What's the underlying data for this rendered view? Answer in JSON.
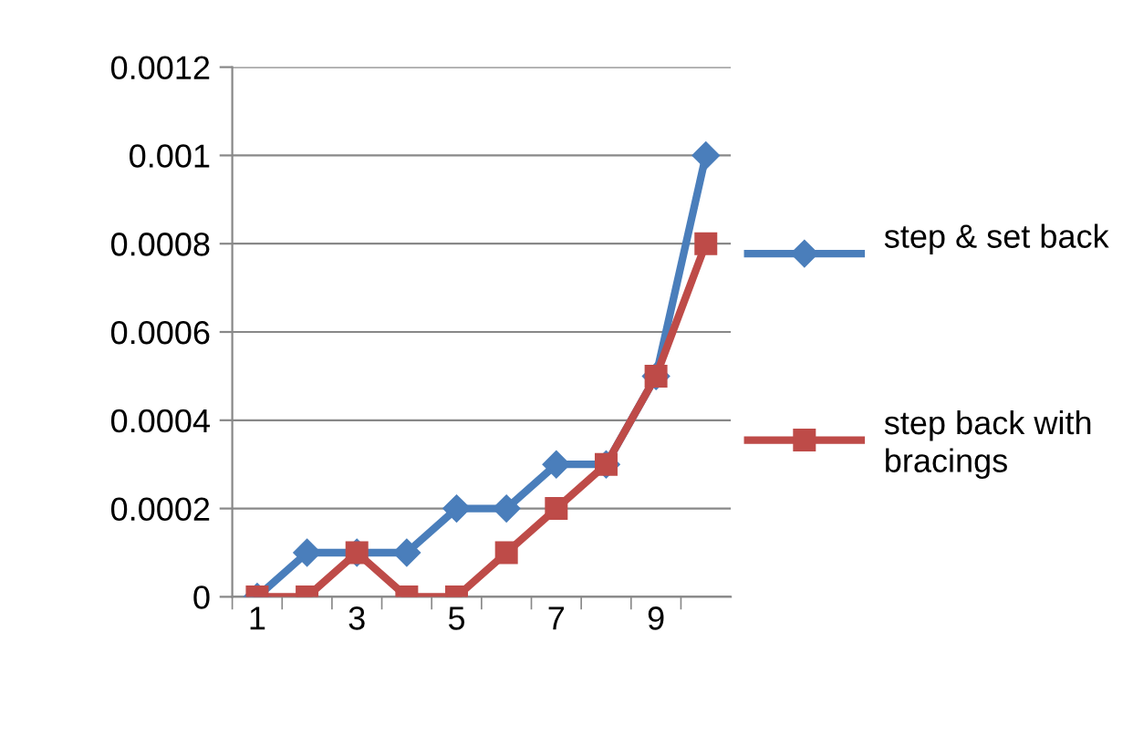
{
  "chart_data": {
    "type": "line",
    "categories": [
      "1",
      null,
      "3",
      null,
      "5",
      null,
      "7",
      null,
      "9",
      null
    ],
    "series": [
      {
        "name": "step & set back",
        "color": "#4a7ebb",
        "marker": "diamond",
        "values": [
          0,
          0.0001,
          0.0001,
          0.0001,
          0.0002,
          0.0002,
          0.0003,
          0.0003,
          0.0005,
          0.001
        ]
      },
      {
        "name": "step back with bracings",
        "color": "#be4b48",
        "marker": "square",
        "values": [
          0,
          0,
          0.0001,
          0,
          0,
          0.0001,
          0.0002,
          0.0003,
          0.0005,
          0.0008
        ]
      }
    ],
    "ylim": [
      0,
      0.0012
    ],
    "yticks": [
      0,
      0.0002,
      0.0004,
      0.0006,
      0.0008,
      0.001,
      0.0012
    ],
    "grid": "y",
    "legend": "right",
    "line_style": "solid"
  }
}
